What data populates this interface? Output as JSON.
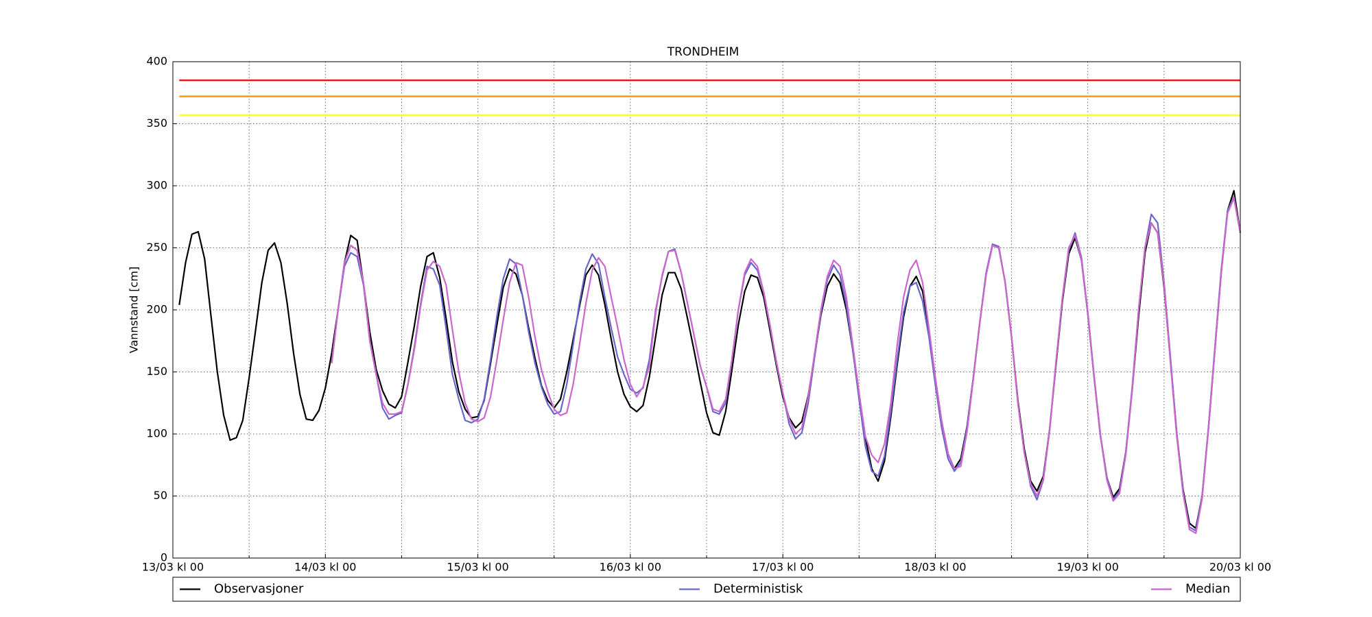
{
  "chart_data": {
    "type": "line",
    "title": "TRONDHEIM",
    "y_label": "Vannstand [cm]",
    "x": [
      1,
      2,
      3,
      4,
      5,
      6,
      7,
      8,
      9,
      10,
      11,
      12,
      13,
      14,
      15,
      16,
      17,
      18,
      19,
      20,
      21,
      22,
      23,
      24,
      25,
      26,
      27,
      28,
      29,
      30,
      31,
      32,
      33,
      34,
      35,
      36,
      37,
      38,
      39,
      40,
      41,
      42,
      43,
      44,
      45,
      46,
      47,
      48,
      49,
      50,
      51,
      52,
      53,
      54,
      55,
      56,
      57,
      58,
      59,
      60,
      61,
      62,
      63,
      64,
      65,
      66,
      67,
      68,
      69,
      70,
      71,
      72,
      73,
      74,
      75,
      76,
      77,
      78,
      79,
      80,
      81,
      82,
      83,
      84,
      85,
      86,
      87,
      88,
      89,
      90,
      91,
      92,
      93,
      94,
      95,
      96,
      97,
      98,
      99,
      100,
      101,
      102,
      103,
      104,
      105,
      106,
      107,
      108,
      109,
      110,
      111,
      112,
      113,
      114,
      115,
      116,
      117,
      118,
      119,
      120,
      121,
      122,
      123,
      124,
      125,
      126,
      127,
      128,
      129,
      130,
      131,
      132,
      133,
      134,
      135,
      136,
      137,
      138,
      139,
      140,
      141,
      142,
      143,
      144,
      145,
      146,
      147,
      148,
      149,
      150,
      151,
      152,
      153,
      154,
      155,
      156,
      157,
      158,
      159,
      160,
      161,
      162,
      163,
      164,
      165,
      166,
      167,
      168
    ],
    "series": [
      {
        "name": "Observasjoner",
        "color": "#000000",
        "values": [
          204,
          238,
          261,
          263,
          241,
          195,
          150,
          115,
          95,
          97,
          111,
          145,
          183,
          222,
          248,
          254,
          238,
          205,
          165,
          132,
          112,
          111,
          119,
          137,
          165,
          200,
          238,
          260,
          256,
          221,
          182,
          152,
          135,
          124,
          121,
          130,
          158,
          187,
          219,
          243,
          246,
          226,
          193,
          158,
          134,
          120,
          113,
          114,
          127,
          157,
          188,
          218,
          233,
          229,
          212,
          185,
          161,
          139,
          127,
          121,
          128,
          150,
          176,
          203,
          228,
          236,
          228,
          204,
          176,
          150,
          132,
          122,
          118,
          123,
          146,
          179,
          212,
          230,
          230,
          217,
          193,
          168,
          142,
          117,
          101,
          99,
          118,
          152,
          188,
          215,
          228,
          226,
          210,
          183,
          155,
          130,
          113,
          105,
          110,
          131,
          163,
          196,
          219,
          229,
          222,
          200,
          168,
          131,
          97,
          72,
          62,
          78,
          114,
          156,
          194,
          219,
          227,
          215,
          184,
          145,
          110,
          84,
          72,
          80,
          106,
          146,
          190,
          229,
          252,
          250,
          222,
          178,
          127,
          88,
          62,
          54,
          66,
          104,
          156,
          207,
          245,
          258,
          240,
          197,
          145,
          98,
          65,
          49,
          56,
          86,
          136,
          195,
          246,
          270,
          262,
          218,
          160,
          100,
          55,
          28,
          24,
          50,
          105,
          168,
          230,
          280,
          296,
          262
        ]
      },
      {
        "name": "Deterministisk",
        "color": "#6666cc",
        "values": [
          null,
          null,
          null,
          null,
          null,
          null,
          null,
          null,
          null,
          null,
          null,
          null,
          null,
          null,
          null,
          null,
          null,
          null,
          null,
          null,
          null,
          null,
          null,
          null,
          157,
          200,
          235,
          246,
          243,
          220,
          175,
          148,
          121,
          112,
          115,
          117,
          140,
          170,
          205,
          235,
          233,
          220,
          185,
          148,
          128,
          111,
          109,
          112,
          128,
          160,
          195,
          225,
          241,
          237,
          212,
          182,
          157,
          138,
          124,
          116,
          118,
          140,
          172,
          206,
          233,
          245,
          237,
          210,
          185,
          162,
          148,
          136,
          133,
          137,
          160,
          200,
          227,
          247,
          249,
          230,
          205,
          180,
          155,
          138,
          118,
          116,
          125,
          160,
          200,
          228,
          238,
          232,
          214,
          187,
          157,
          133,
          108,
          96,
          101,
          125,
          162,
          198,
          224,
          236,
          228,
          204,
          168,
          128,
          90,
          70,
          66,
          82,
          118,
          160,
          198,
          219,
          222,
          207,
          178,
          140,
          105,
          80,
          70,
          77,
          105,
          146,
          190,
          230,
          253,
          251,
          222,
          178,
          125,
          85,
          58,
          47,
          63,
          103,
          158,
          209,
          248,
          262,
          242,
          198,
          146,
          99,
          65,
          47,
          54,
          86,
          138,
          200,
          250,
          277,
          270,
          222,
          162,
          100,
          53,
          25,
          22,
          50,
          106,
          170,
          232,
          280,
          291,
          262
        ]
      },
      {
        "name": "Median",
        "color": "#cc66cc",
        "values": [
          null,
          null,
          null,
          null,
          null,
          null,
          null,
          null,
          null,
          null,
          null,
          null,
          null,
          null,
          null,
          null,
          null,
          null,
          null,
          null,
          null,
          null,
          null,
          null,
          157,
          200,
          238,
          252,
          248,
          222,
          175,
          148,
          125,
          116,
          116,
          118,
          140,
          168,
          203,
          232,
          239,
          235,
          220,
          184,
          150,
          125,
          112,
          110,
          113,
          130,
          160,
          192,
          222,
          238,
          236,
          210,
          178,
          152,
          134,
          120,
          115,
          117,
          140,
          172,
          205,
          232,
          242,
          235,
          210,
          186,
          160,
          140,
          130,
          138,
          155,
          198,
          228,
          247,
          248,
          230,
          205,
          180,
          155,
          138,
          120,
          118,
          128,
          160,
          200,
          230,
          241,
          235,
          214,
          187,
          158,
          133,
          112,
          100,
          105,
          130,
          165,
          200,
          227,
          240,
          235,
          210,
          172,
          133,
          98,
          83,
          77,
          92,
          125,
          172,
          210,
          232,
          240,
          222,
          185,
          145,
          110,
          84,
          72,
          74,
          102,
          145,
          190,
          228,
          252,
          250,
          222,
          178,
          125,
          85,
          60,
          50,
          64,
          104,
          158,
          210,
          250,
          260,
          240,
          198,
          145,
          98,
          63,
          46,
          52,
          84,
          136,
          200,
          250,
          270,
          262,
          220,
          158,
          98,
          52,
          23,
          20,
          48,
          105,
          168,
          230,
          278,
          290,
          262
        ]
      }
    ],
    "hlines": [
      {
        "value": 385,
        "color": "#e31a1c"
      },
      {
        "value": 372,
        "color": "#ff9900"
      },
      {
        "value": 357,
        "color": "#ffff33"
      }
    ],
    "xlim": [
      0,
      168
    ],
    "xticks": [
      {
        "value": 0,
        "label": "13/03 kl 00"
      },
      {
        "value": 24,
        "label": "14/03 kl 00"
      },
      {
        "value": 48,
        "label": "15/03 kl 00"
      },
      {
        "value": 72,
        "label": "16/03 kl 00"
      },
      {
        "value": 96,
        "label": "17/03 kl 00"
      },
      {
        "value": 120,
        "label": "18/03 kl 00"
      },
      {
        "value": 144,
        "label": "19/03 kl 00"
      },
      {
        "value": 168,
        "label": "20/03 kl 00"
      }
    ],
    "xticks_minor": [
      12,
      36,
      60,
      84,
      108,
      132,
      156
    ],
    "ylim": [
      0,
      400
    ],
    "yticks": [
      0,
      50,
      100,
      150,
      200,
      250,
      300,
      350,
      400
    ],
    "grid": true,
    "legend": "bottom"
  }
}
